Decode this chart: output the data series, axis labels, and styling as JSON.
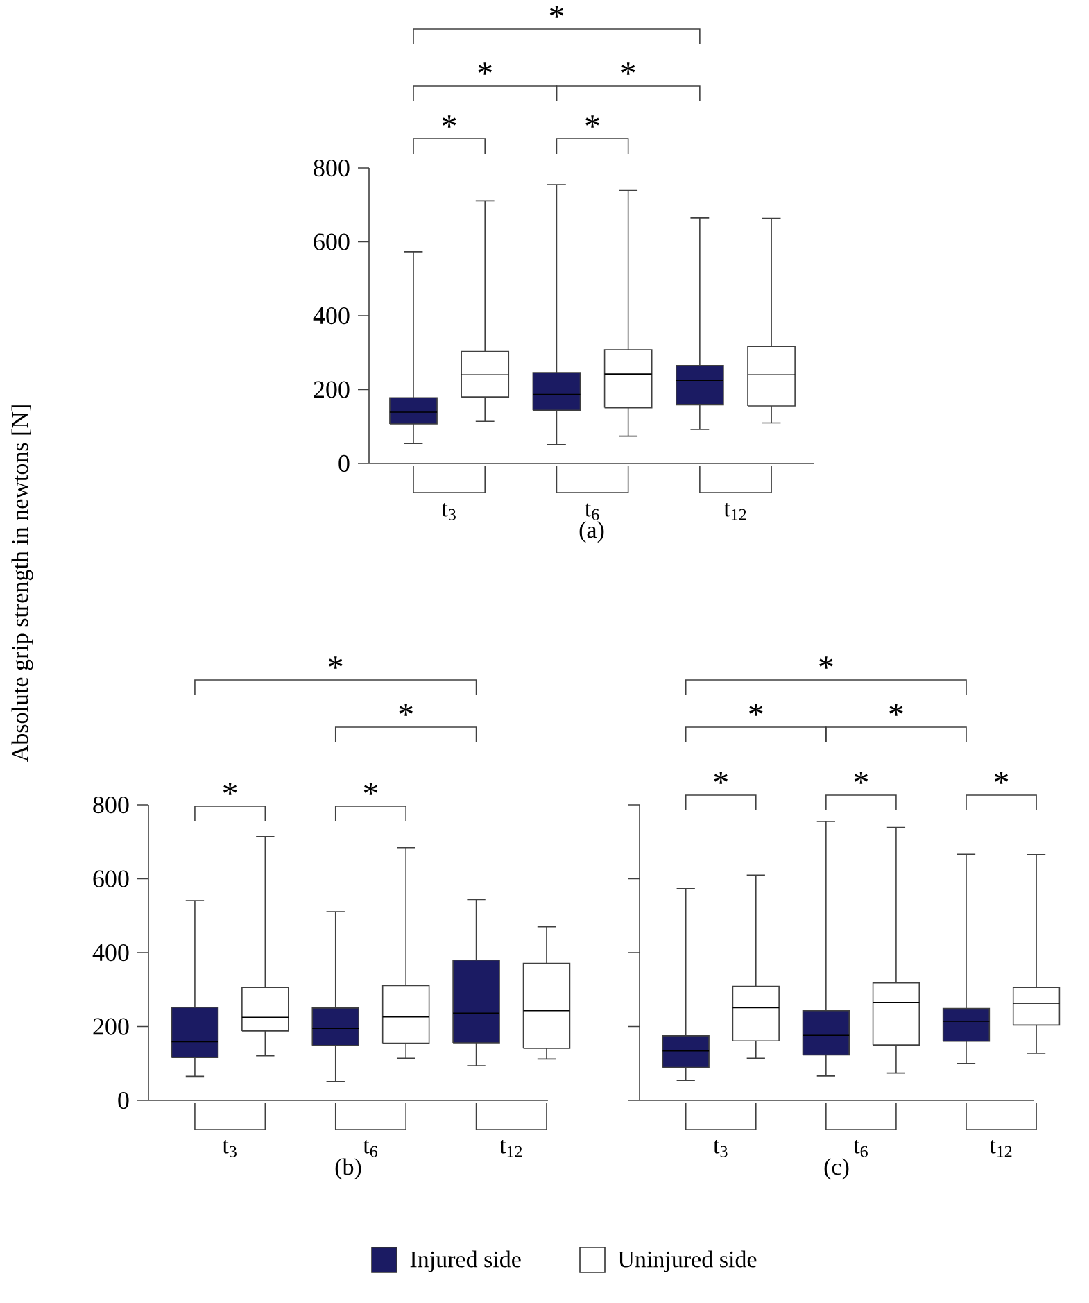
{
  "chart_data": [
    {
      "type": "box",
      "xlabel": "(a)",
      "categories": [
        "t$_{3}$",
        "t$_{6}$",
        "t$_{12}$"
      ],
      "ylim": [
        0,
        800
      ],
      "yticks": [
        0,
        200,
        400,
        600,
        800
      ],
      "series": [
        {
          "color": "#1b1b63",
          "boxes": [
            {
              "low": 54,
              "q1": 107,
              "median": 139,
              "q3": 178,
              "high": 573
            },
            {
              "low": 51,
              "q1": 144,
              "median": 187,
              "q3": 246,
              "high": 755
            },
            {
              "low": 92,
              "q1": 159,
              "median": 225,
              "q3": 265,
              "high": 665
            }
          ]
        },
        {
          "color": "#ffffff",
          "boxes": [
            {
              "low": 114,
              "q1": 180,
              "median": 240,
              "q3": 303,
              "high": 711
            },
            {
              "low": 74,
              "q1": 151,
              "median": 242,
              "q3": 308,
              "high": 739
            },
            {
              "low": 110,
              "q1": 156,
              "median": 240,
              "q3": 317,
              "high": 664
            }
          ]
        }
      ],
      "annotations": [
        "*",
        "*",
        "*",
        "*",
        "*"
      ]
    },
    {
      "type": "box",
      "xlabel": "(b)",
      "ylabel": "Absolute grip strength in newtons [N]",
      "categories": [
        "t$_{3}$",
        "t$_{6}$",
        "t$_{12}$"
      ],
      "ylim": [
        0,
        800
      ],
      "yticks": [
        0,
        200,
        400,
        600,
        800
      ],
      "legend": "bottom",
      "series": [
        {
          "name": "Injured side",
          "color": "#1b1b63",
          "boxes": [
            {
              "low": 65,
              "q1": 116,
              "median": 159,
              "q3": 252,
              "high": 541
            },
            {
              "low": 51,
              "q1": 149,
              "median": 195,
              "q3": 250,
              "high": 511
            },
            {
              "low": 94,
              "q1": 156,
              "median": 236,
              "q3": 380,
              "high": 544
            }
          ]
        },
        {
          "name": "Uninjured side",
          "color": "#ffffff",
          "boxes": [
            {
              "low": 121,
              "q1": 188,
              "median": 225,
              "q3": 306,
              "high": 714
            },
            {
              "low": 114,
              "q1": 155,
              "median": 226,
              "q3": 311,
              "high": 684
            },
            {
              "low": 112,
              "q1": 141,
              "median": 243,
              "q3": 371,
              "high": 470
            }
          ]
        }
      ],
      "annotations": [
        "*",
        "*",
        "*",
        "*"
      ]
    },
    {
      "type": "box",
      "xlabel": "(c)",
      "categories": [
        "t$_{3}$",
        "t$_{6}$",
        "t$_{12}$"
      ],
      "ylim": [
        0,
        800
      ],
      "yticks": [
        0,
        200,
        400,
        600,
        800
      ],
      "tick_labels": "x",
      "series": [
        {
          "color": "#1b1b63",
          "boxes": [
            {
              "low": 54,
              "q1": 89,
              "median": 134,
              "q3": 175,
              "high": 573
            },
            {
              "low": 66,
              "q1": 123,
              "median": 176,
              "q3": 243,
              "high": 755
            },
            {
              "low": 100,
              "q1": 160,
              "median": 214,
              "q3": 249,
              "high": 666
            }
          ]
        },
        {
          "color": "#ffffff",
          "boxes": [
            {
              "low": 114,
              "q1": 161,
              "median": 251,
              "q3": 309,
              "high": 610
            },
            {
              "low": 74,
              "q1": 150,
              "median": 265,
              "q3": 318,
              "high": 739
            },
            {
              "low": 128,
              "q1": 204,
              "median": 263,
              "q3": 306,
              "high": 665
            }
          ]
        }
      ],
      "annotations": [
        "*",
        "*",
        "*",
        "*",
        "*",
        "*"
      ]
    }
  ]
}
